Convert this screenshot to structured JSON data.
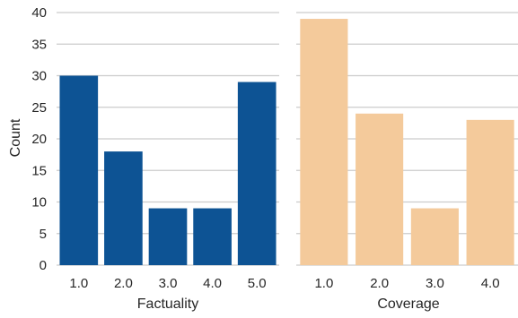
{
  "chart_data": [
    {
      "type": "bar",
      "categories": [
        "1.0",
        "2.0",
        "3.0",
        "4.0",
        "5.0"
      ],
      "values": [
        30,
        18,
        9,
        9,
        29
      ],
      "color": "#0d5394",
      "xlabel": "Factuality",
      "ylabel": "Count",
      "ylim": [
        0,
        40
      ],
      "yticks": [
        "0",
        "5",
        "10",
        "15",
        "20",
        "25",
        "30",
        "35",
        "40"
      ],
      "grid": true
    },
    {
      "type": "bar",
      "categories": [
        "1.0",
        "2.0",
        "3.0",
        "4.0"
      ],
      "values": [
        39,
        24,
        9,
        23
      ],
      "color": "#f4ca9b",
      "xlabel": "Coverage",
      "ylabel": "",
      "ylim": [
        0,
        40
      ],
      "grid": true
    }
  ]
}
